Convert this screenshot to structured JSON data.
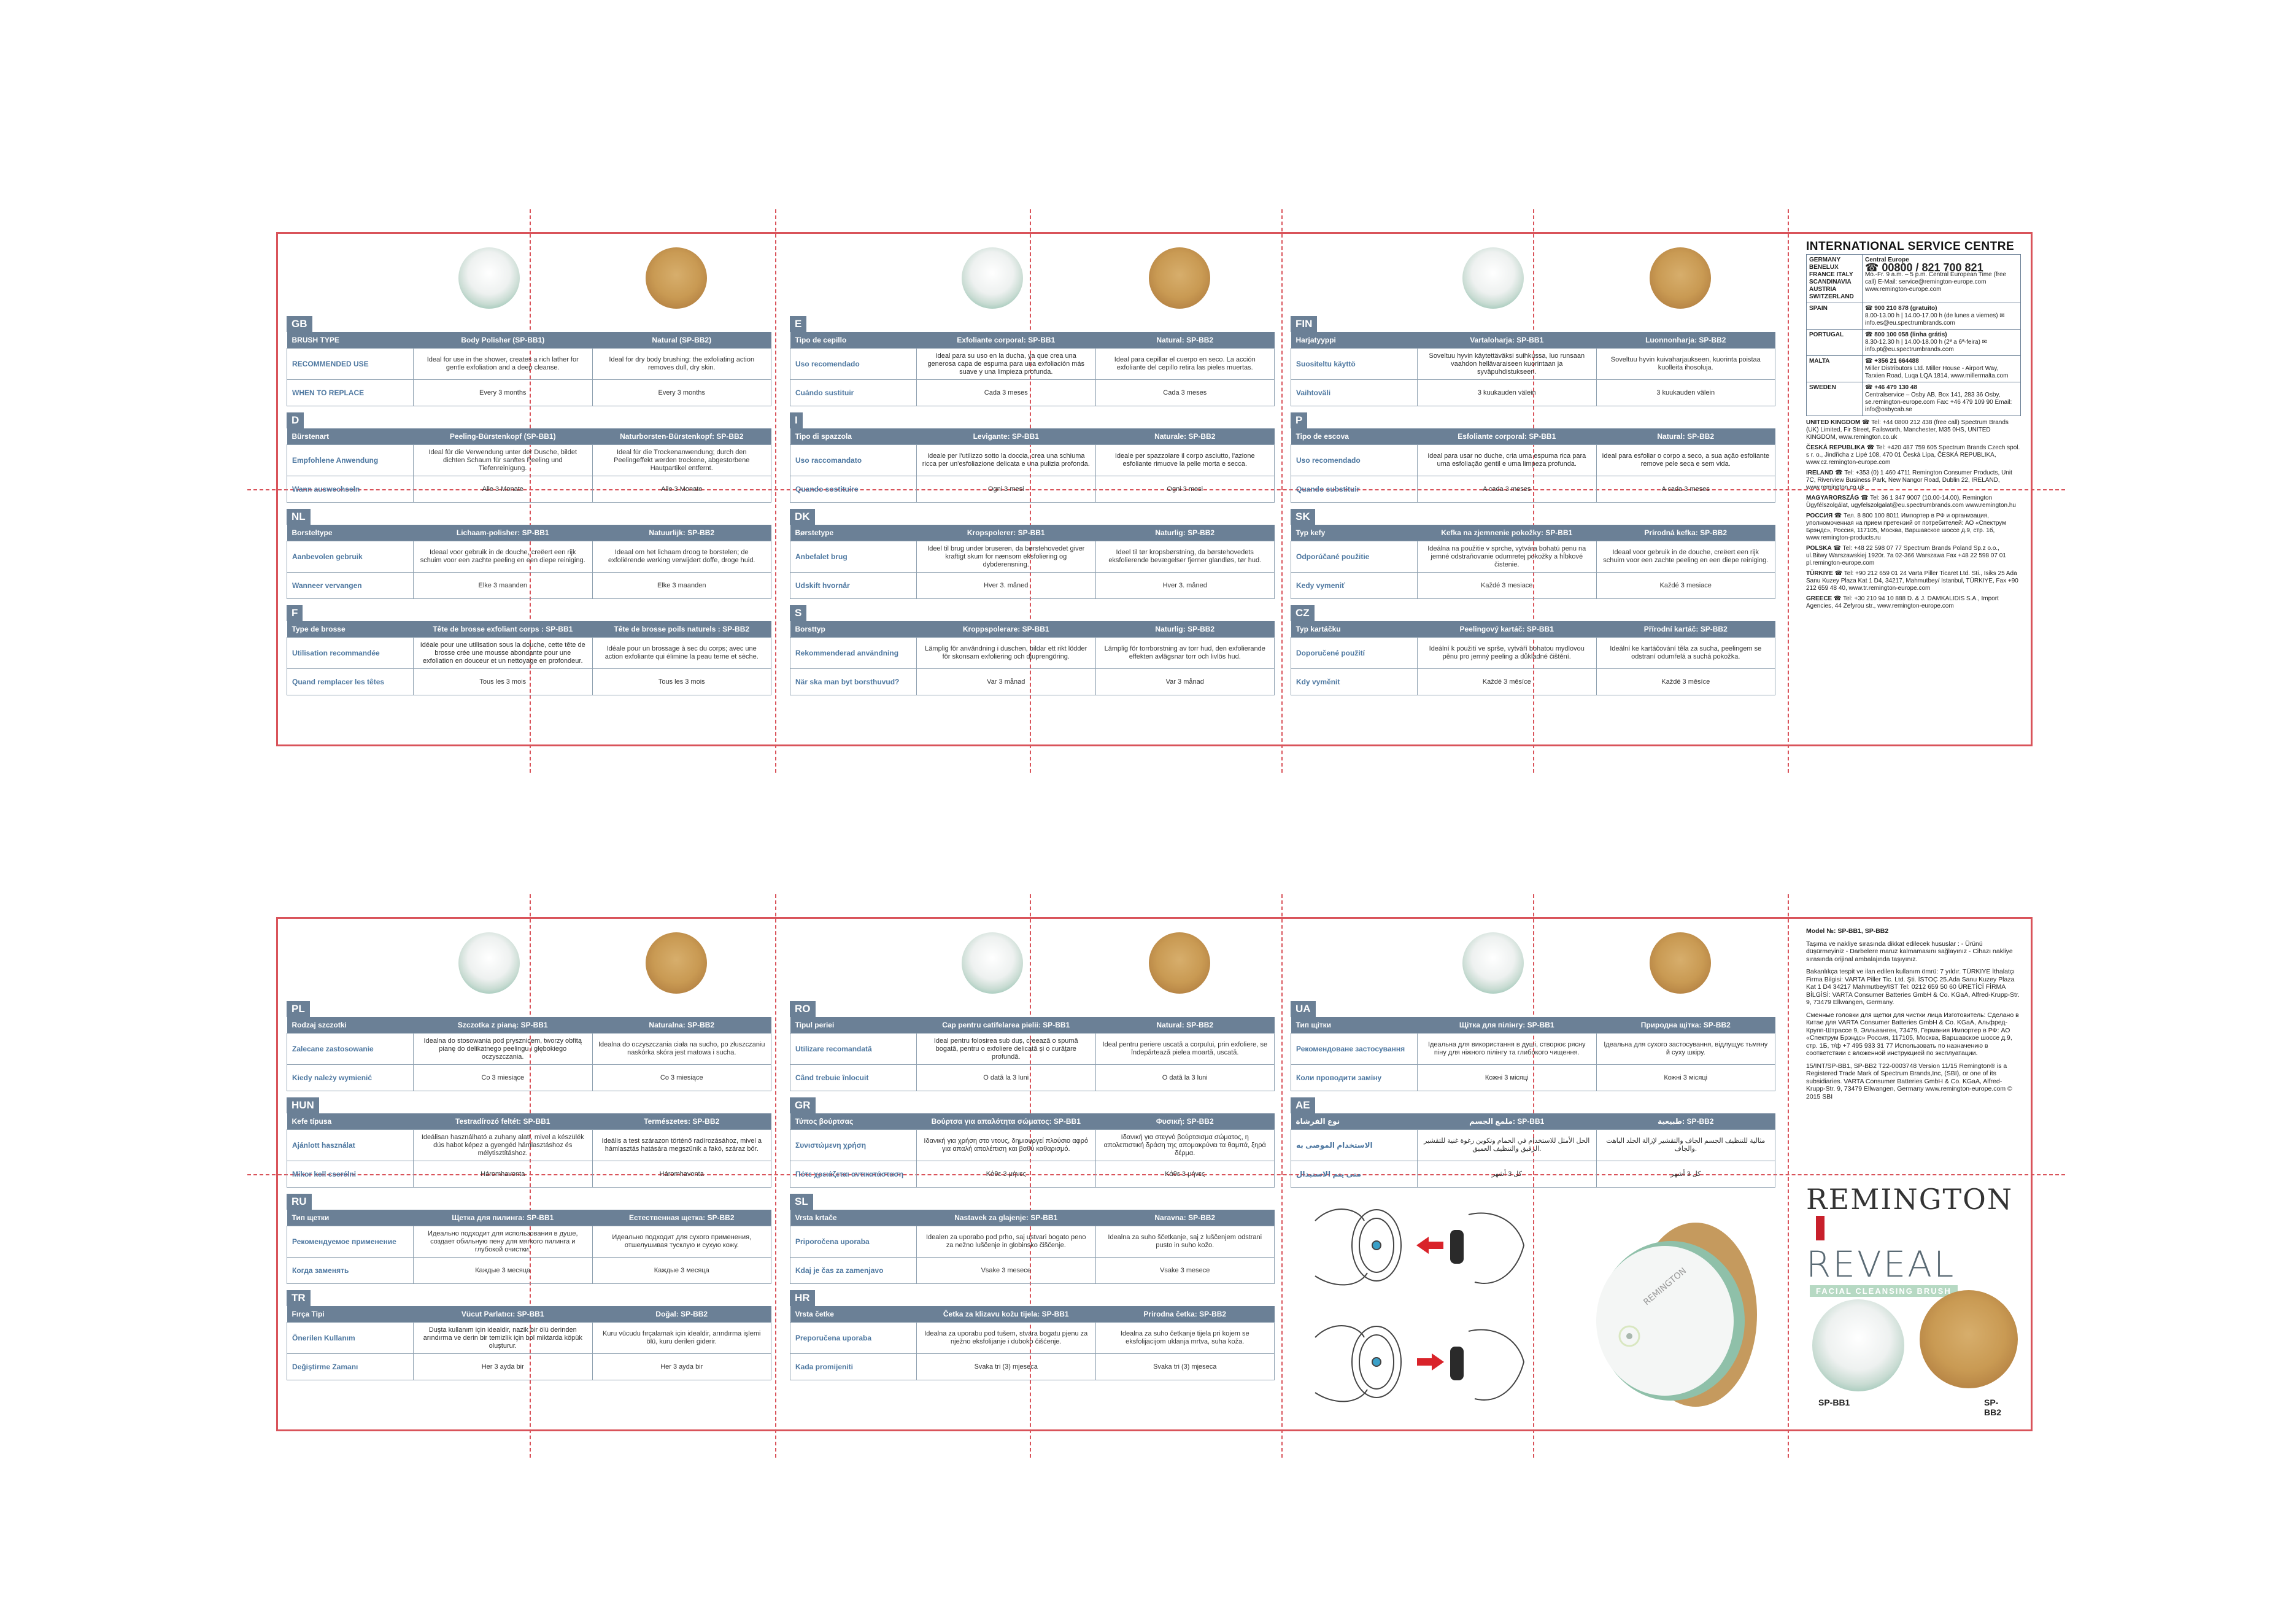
{
  "top_sheet": {
    "panels": [
      {
        "blocks": [
          {
            "code": "GB",
            "hdr": [
              "BRUSH TYPE",
              "Body Polisher (SP-BB1)",
              "Natural (SP-BB2)"
            ],
            "r1": [
              "RECOMMENDED USE",
              "Ideal for use in the shower, creates a rich lather for gentle exfoliation and a deep cleanse.",
              "Ideal for dry body brushing: the exfoliating action removes dull, dry skin."
            ],
            "r2": [
              "WHEN TO REPLACE",
              "Every 3 months",
              "Every 3 months"
            ]
          },
          {
            "code": "D",
            "hdr": [
              "Bürstenart",
              "Peeling-Bürstenkopf (SP-BB1)",
              "Naturborsten-Bürstenkopf: SP-BB2"
            ],
            "r1": [
              "Empfohlene Anwendung",
              "Ideal für die Verwendung unter der Dusche, bildet dichten Schaum für sanftes Peeling und Tiefenreinigung.",
              "Ideal für die Trockenanwendung; durch den Peelingeffekt werden trockene, abgestorbene Hautpartikel entfernt."
            ],
            "r2": [
              "Wann auswechseln",
              "Alle 3 Monate",
              "Alle 3 Monate"
            ]
          },
          {
            "code": "NL",
            "hdr": [
              "Borsteltype",
              "Lichaam-polisher: SP-BB1",
              "Natuurlijk: SP-BB2"
            ],
            "r1": [
              "Aanbevolen gebruik",
              "Ideaal voor gebruik in de douche, creëert een rijk schuim voor een zachte peeling en een diepe reiniging.",
              "Ideaal om het lichaam droog te borstelen; de exfoliërende werking verwijdert doffe, droge huid."
            ],
            "r2": [
              "Wanneer vervangen",
              "Elke 3 maanden",
              "Elke 3 maanden"
            ]
          },
          {
            "code": "F",
            "hdr": [
              "Type de brosse",
              "Tête de brosse exfoliant corps : SP-BB1",
              "Tête de brosse poils naturels : SP-BB2"
            ],
            "r1": [
              "Utilisation recommandée",
              "Idéale pour une utilisation sous la douche, cette tête de brosse crée une mousse abondante pour une exfoliation en douceur et un nettoyage en profondeur.",
              "Idéale pour un brossage à sec du corps; avec une action exfoliante qui élimine la peau terne et sèche."
            ],
            "r2": [
              "Quand remplacer les têtes",
              "Tous les 3 mois",
              "Tous les 3 mois"
            ]
          }
        ]
      },
      {
        "blocks": [
          {
            "code": "E",
            "hdr": [
              "Tipo de cepillo",
              "Exfoliante corporal: SP-BB1",
              "Natural: SP-BB2"
            ],
            "r1": [
              "Uso recomendado",
              "Ideal para su uso en la ducha, ya que crea una generosa capa de espuma para una exfoliación más suave y una limpieza profunda.",
              "Ideal para cepillar el cuerpo en seco. La acción exfoliante del cepillo retira las pieles muertas."
            ],
            "r2": [
              "Cuándo sustituir",
              "Cada 3 meses",
              "Cada 3 meses"
            ]
          },
          {
            "code": "I",
            "hdr": [
              "Tipo di spazzola",
              "Levigante: SP-BB1",
              "Naturale: SP-BB2"
            ],
            "r1": [
              "Uso raccomandato",
              "Ideale per l'utilizzo sotto la doccia, crea una schiuma ricca per un'esfoliazione delicata e una pulizia profonda.",
              "Ideale per spazzolare il corpo asciutto, l'azione esfoliante rimuove la pelle morta e secca."
            ],
            "r2": [
              "Quando sostituire",
              "Ogni 3 mesi",
              "Ogni 3 mesi"
            ]
          },
          {
            "code": "DK",
            "hdr": [
              "Børstetype",
              "Kropspolerer: SP-BB1",
              "Naturlig: SP-BB2"
            ],
            "r1": [
              "Anbefalet brug",
              "Ideel til brug under bruseren, da børstehovedet giver kraftigt skum for nænsom eksfoliering og dybderensning.",
              "Ideel til tør kropsbørstning, da børstehovedets eksfolierende bevægelser fjerner glandløs, tør hud."
            ],
            "r2": [
              "Udskift hvornår",
              "Hver 3. måned",
              "Hver 3. måned"
            ]
          },
          {
            "code": "S",
            "hdr": [
              "Borsttyp",
              "Kroppspolerare: SP-BB1",
              "Naturlig: SP-BB2"
            ],
            "r1": [
              "Rekommenderad användning",
              "Lämplig för användning i duschen, bildar ett rikt lödder för skonsam exfoliering och djuprengöring.",
              "Lämplig för torrborstning av torr hud, den exfolierande effekten avlägsnar torr och livlös hud."
            ],
            "r2": [
              "När ska man byt borsthuvud?",
              "Var 3 månad",
              "Var 3 månad"
            ]
          }
        ]
      },
      {
        "blocks": [
          {
            "code": "FIN",
            "hdr": [
              "Harjatyyppi",
              "Vartaloharja: SP-BB1",
              "Luonnonharja: SP-BB2"
            ],
            "r1": [
              "Suositeltu käyttö",
              "Soveltuu hyvin käytettäväksi suihkussa, luo runsaan vaahdon hellävaraiseen kuorintaan ja syväpuhdistukseen.",
              "Soveltuu hyvin kuivaharjaukseen, kuorinta poistaa kuolleita ihosoluja."
            ],
            "r2": [
              "Vaihtoväli",
              "3 kuukauden välein",
              "3 kuukauden välein"
            ]
          },
          {
            "code": "P",
            "hdr": [
              "Tipo de escova",
              "Esfoliante corporal: SP-BB1",
              "Natural: SP-BB2"
            ],
            "r1": [
              "Uso recomendado",
              "Ideal para usar no duche, cria uma espuma rica para uma esfoliação gentil e uma limpeza profunda.",
              "Ideal para esfoliar o corpo a seco, a sua ação esfoliante remove pele seca e sem vida."
            ],
            "r2": [
              "Quando substituir",
              "A cada 3 meses",
              "A cada 3 meses"
            ]
          },
          {
            "code": "SK",
            "hdr": [
              "Typ kefy",
              "Kefka na zjemnenie pokožky: SP-BB1",
              "Prírodná kefka: SP-BB2"
            ],
            "r1": [
              "Odporúčané použitie",
              "Ideálna na použitie v sprche, vytvára bohatú penu na jemné odstraňovanie odumretej pokožky a hĺbkové čistenie.",
              "Ideaal voor gebruik in de douche, creëert een rijk schuim voor een zachte peeling en een diepe reiniging."
            ],
            "r2": [
              "Kedy vymeniť",
              "Každé 3 mesiace",
              "Každé 3 mesiace"
            ]
          },
          {
            "code": "CZ",
            "hdr": [
              "Typ kartáčku",
              "Peelingový kartáč: SP-BB1",
              "Přírodní kartáč: SP-BB2"
            ],
            "r1": [
              "Doporučené použití",
              "Ideální k použití ve sprše, vytváří bohatou mydlovou pěnu pro jemný peeling a důkladné čištění.",
              "Ideální ke kartáčování těla za sucha, peelingem se odstraní odumřelá a suchá pokožka."
            ],
            "r2": [
              "Kdy vyměnit",
              "Každé 3 měsíce",
              "Každé 3 měsíce"
            ]
          }
        ]
      }
    ],
    "service": {
      "title": "INTERNATIONAL SERVICE CENTRE",
      "rows": [
        {
          "c": "GERMANY BENELUX FRANCE ITALY SCANDINAVIA AUSTRIA SWITZERLAND",
          "t": "Central Europe",
          "big": "☎ 00800 / 821 700 821",
          "d": "Mo.-Fr. 9 a.m. – 5 p.m. Central European Time (free call) E-Mail: service@remington-europe.com www.remington-europe.com"
        },
        {
          "c": "SPAIN",
          "t": "",
          "big": "☎ 900 210 878 (gratuito)",
          "d": "8.00-13.00 h | 14.00-17.00 h (de lunes a viernes) ✉ info.es@eu.spectrumbrands.com"
        },
        {
          "c": "PORTUGAL",
          "t": "",
          "big": "☎ 800 100 058 (linha grátis)",
          "d": "8.30-12.30 h | 14.00-18.00 h (2ª a 6ª-feira) ✉ info.pt@eu.spectrumbrands.com"
        },
        {
          "c": "MALTA",
          "t": "",
          "big": "☎ +356 21 664488",
          "d": "Miller Distributors Ltd. Miller House - Airport Way, Tarxien Road, Luqa LQA 1814, www.millermalta.com"
        },
        {
          "c": "SWEDEN",
          "t": "",
          "big": "☎ +46 479 130 48",
          "d": "Centralservice – Osby AB, Box 141, 283 36 Osby, se.remington-europe.com Fax: +46 479 109 90 Email: info@osbycab.se"
        }
      ],
      "entries": [
        {
          "c": "UNITED KINGDOM",
          "d": "☎ Tel: +44 0800 212 438 (free call) Spectrum Brands (UK) Limited, Fir Street, Failsworth, Manchester, M35 0HS, UNITED KINGDOM, www.remington.co.uk"
        },
        {
          "c": "ČESKÁ REPUBLIKA",
          "d": "☎ Tel: +420 487 759 605 Spectrum Brands Czech spol. s r. o., Jindřicha z Lipé 108, 470 01 Česká Lípa, ČESKÁ REPUBLIKA, www.cz.remington-europe.com"
        },
        {
          "c": "IRELAND",
          "d": "☎ Tel: +353 (0) 1 460 4711 Remington Consumer Products, Unit 7C, Riverview Business Park, New Nangor Road, Dublin 22, IRELAND, www.remington.co.uk"
        },
        {
          "c": "MAGYARORSZÁG",
          "d": "☎ Tel: 36 1 347 9007 (10.00-14.00), Remington Ügyfélszolgálat, ugyfelszolgalat@eu.spectrumbrands.com www.remington.hu"
        },
        {
          "c": "РОССИЯ",
          "d": "☎ Тел. 8 800 100 8011 Импортер в РФ и организация, уполномоченная на прием претензий от потребителей: АО «Спектрум Брэндс», Россия, 117105, Москва, Варшавское шоссе д.9, стр. 1б, www.remington-products.ru"
        },
        {
          "c": "POLSKA",
          "d": "☎ Tel: +48 22 598 07 77 Spectrum Brands Poland Sp.z o.o., ul.Bitwy Warszawskiej 1920r. 7a 02-366 Warszawa Fax +48 22 598 07 01 pl.remington-europe.com"
        },
        {
          "c": "TÜRKIYE",
          "d": "☎ Tel: +90 212 659 01 24 Varta Piller Ticaret Ltd. Sti., Isiks 25 Ada Sanu Kuzey Plaza Kat 1 D4, 34217, Mahmutbey/ Istanbul, TÜRKIYE, Fax +90 212 659 48 40, www.tr.remington-europe.com"
        },
        {
          "c": "GREECE",
          "d": "☎ Tel: +30 210 94 10 888 D. & J. DAMKALIDIS S.A., Import Agencies, 44 Zefyrou str., www.remington-europe.com"
        }
      ]
    }
  },
  "bottom_sheet": {
    "panels": [
      {
        "blocks": [
          {
            "code": "PL",
            "hdr": [
              "Rodzaj szczotki",
              "Szczotka z pianą: SP-BB1",
              "Naturalna: SP-BB2"
            ],
            "r1": [
              "Zalecane zastosowanie",
              "Idealna do stosowania pod prysznicem, tworzy obfitą pianę do delikatnego peelingu i głębokiego oczyszczania.",
              "Idealna do oczyszczania ciała na sucho, po złuszczaniu naskórka skóra jest matowa i sucha."
            ],
            "r2": [
              "Kiedy należy wymienić",
              "Co 3 miesiące",
              "Co 3 miesiące"
            ]
          },
          {
            "code": "HUN",
            "hdr": [
              "Kefe típusa",
              "Testradírozó feltét: SP-BB1",
              "Természetes: SP-BB2"
            ],
            "r1": [
              "Ajánlott használat",
              "Ideálisan használható a zuhany alatt, mivel a készülék dús habot képez a gyengéd hámlasztáshoz és mélytisztításhoz.",
              "Ideális a test szárazon történő radírozásához, mivel a hámlasztás hatására megszűnik a fakó, száraz bőr."
            ],
            "r2": [
              "Mikor kell cserélni",
              "Háromhavonta",
              "Háromhavonta"
            ]
          },
          {
            "code": "RU",
            "hdr": [
              "Тип щетки",
              "Щетка для пилинга: SP-BB1",
              "Естественная щетка: SP-BB2"
            ],
            "r1": [
              "Рекомендуемое применение",
              "Идеально подходит для использования в душе, создает обильную пену для мягкого пилинга и глубокой очистки.",
              "Идеально подходит для сухого применения, отшелушивая тусклую и сухую кожу."
            ],
            "r2": [
              "Когда заменять",
              "Каждые 3 месяца",
              "Каждые 3 месяца"
            ]
          },
          {
            "code": "TR",
            "hdr": [
              "Fırça Tipi",
              "Vücut Parlatıcı: SP-BB1",
              "Doğal: SP-BB2"
            ],
            "r1": [
              "Önerilen Kullanım",
              "Duşta kullanım için idealdir, nazik bir ölü derinden arındırma ve derin bir temizlik için bol miktarda köpük oluşturur.",
              "Kuru vücudu fırçalamak için idealdir, arındırma işlemi ölü, kuru derileri giderir."
            ],
            "r2": [
              "Değiştirme Zamanı",
              "Her 3 ayda bir",
              "Her 3 ayda bir"
            ]
          }
        ]
      },
      {
        "blocks": [
          {
            "code": "RO",
            "hdr": [
              "Tipul periei",
              "Cap pentru catifelarea pielii: SP-BB1",
              "Natural: SP-BB2"
            ],
            "r1": [
              "Utilizare recomandată",
              "Ideal pentru folosirea sub duș, creează o spumă bogată, pentru o exfoliere delicată și o curățare profundă.",
              "Ideal pentru periere uscată a corpului, prin exfoliere, se îndepărtează pielea moartă, uscată."
            ],
            "r2": [
              "Când trebuie înlocuit",
              "O dată la 3 luni",
              "O dată la 3 luni"
            ]
          },
          {
            "code": "GR",
            "hdr": [
              "Τύπος βούρτσας",
              "Βούρτσα για απαλότητα σώματος: SP-BB1",
              "Φυσική: SP-BB2"
            ],
            "r1": [
              "Συνιστώμενη χρήση",
              "Ιδανική για χρήση στο ντους, δημιουργεί πλούσιο αφρό για απαλή απολέπιση και βαθύ καθαρισμό.",
              "Ιδανική για στεγνό βούρτσισμα σώματος, η απολεπιστική δράση της απομακρύνει τα θαμπά, ξηρά δέρμα."
            ],
            "r2": [
              "Πότε χρειάζεται αντικατάσταση",
              "Κάθε 3 μήνες",
              "Κάθε 3 μήνες"
            ]
          },
          {
            "code": "SL",
            "hdr": [
              "Vrsta krtače",
              "Nastavek za glajenje: SP-BB1",
              "Naravna: SP-BB2"
            ],
            "r1": [
              "Priporočena uporaba",
              "Idealen za uporabo pod prho, saj ustvari bogato peno za nežno luščenje in globinsko čiščenje.",
              "Idealna za suho ščetkanje, saj z luščenjem odstrani pusto in suho kožo."
            ],
            "r2": [
              "Kdaj je čas za zamenjavo",
              "Vsake 3 mesece",
              "Vsake 3 mesece"
            ]
          },
          {
            "code": "HR",
            "hdr": [
              "Vrsta četke",
              "Četka za klizavu kožu tijela: SP-BB1",
              "Prirodna četka: SP-BB2"
            ],
            "r1": [
              "Preporučena uporaba",
              "Idealna za uporabu pod tušem, stvara bogatu pjenu za nježno eksfolijanje i duboko čišćenje.",
              "Idealna za suho četkanje tijela pri kojem se eksfolijacijom uklanja mrtva, suha koža."
            ],
            "r2": [
              "Kada promijeniti",
              "Svaka tri (3) mjeseca",
              "Svaka tri (3) mjeseca"
            ]
          }
        ]
      },
      {
        "blocks": [
          {
            "code": "UA",
            "hdr": [
              "Тип щітки",
              "Щітка для пілінгу: SP-BB1",
              "Природна щітка: SP-BB2"
            ],
            "r1": [
              "Рекомендоване застосування",
              "Ідеальна для використання в душі, створює рясну піну для ніжного пілінгу та глибокого чищення.",
              "Ідеальна для сухого застосування, відлущує тьмяну й суху шкіру."
            ],
            "r2": [
              "Коли проводити заміну",
              "Кожні 3 місяці",
              "Кожні 3 місяці"
            ]
          },
          {
            "code": "AE",
            "hdr": [
              "نوع الفرشاة",
              "ملمع الجسم: SP-BB1",
              "طبيعية: SP-BB2"
            ],
            "r1": [
              "الاستخدام الموصى به",
              "الحل الأمثل للاستخدام في الحمام وتكوين رغوة غنية للتقشير الرقيق والتنظيف العميق.",
              "مثالية للتنظيف الجسم الجاف والتقشير لإزالة الجلد الباهت والجاف."
            ],
            "r2": [
              "متى يتم الاستبدال",
              "كل 3 أشهر",
              "كل 3 أشهر"
            ]
          }
        ]
      }
    ],
    "model": {
      "lines": [
        "Model №: SP-BB1, SP-BB2",
        "Taşıma ve nakliye sırasında dikkat edilecek hususlar : - Ürünü düşürmeyiniz - Darbelere maruz kalmamasını sağlayınız - Cihazı nakliye sırasında orijinal ambalajında taşıyınız.",
        "Bakanlıkça tespit ve ilan edilen kullanım ömrü: 7 yıldır. TÜRKIYE İthalatçı Firma Bilgisi: VARTA Piller Tic. Ltd. Şti. İSTOÇ 25.Ada Sanu Kuzey Plaza Kat 1 D4 34217 Mahmutbey/IST Tel: 0212 659 50 60 ÜRETİCİ FİRMA BİLGİSİ: VARTA Consumer Batteries GmbH & Co. KGaA, Alfred-Krupp-Str. 9, 73479 Ellwangen, Germany.",
        "Сменные головки для щетки для чистки лица Изготовитель: Сделано в Китае для VARTA Consumer Batteries GmbH & Co. KGaA, Альфред-Крупп-Штрассе 9, Элльванген, 73479, Германия Импортер в РФ: АО «Спектрум Брэндс» Россия, 117105, Москва, Варшавское шоссе д.9, стр. 1Б, т/ф +7 495 933 31 77 Использовать по назначению в соответствии с вложенной инструкцией по эксплуатации.",
        "15/INT/SP-BB1, SP-BB2 T22-0003748 Version 11/15 Remington® is a Registered Trade Mark of Spectrum Brands,Inc, (SBI), or one of its subsidiaries. VARTA Consumer Batteries GmbH & Co. KGaA, Alfred-Krupp-Str. 9, 73479 Ellwangen, Germany www.remington-europe.com © 2015 SBI"
      ]
    },
    "brand": {
      "logo": "REMINGTON",
      "reveal": "REVEAL",
      "tag": "FACIAL CLEANSING BRUSH",
      "sku1": "SP-BB1",
      "sku2": "SP-BB2"
    }
  },
  "colors": {
    "accent": "#6b8096",
    "border": "#d9535a",
    "label": "#4d77a0",
    "mint": "#b6d9c3"
  }
}
